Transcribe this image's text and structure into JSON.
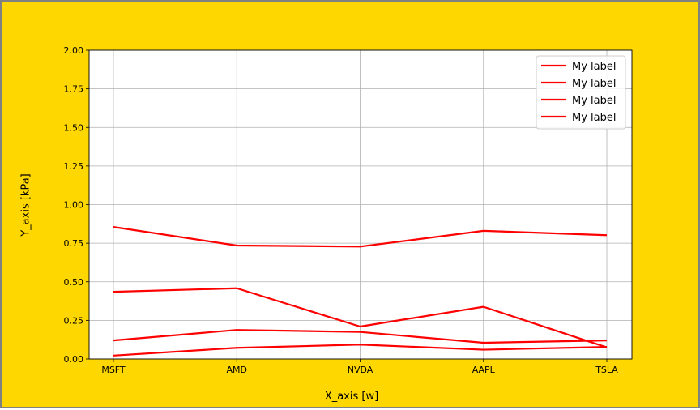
{
  "chart_data": {
    "type": "line",
    "categories": [
      "MSFT",
      "AMD",
      "NVDA",
      "AAPL",
      "TSLA"
    ],
    "series": [
      {
        "name": "My label",
        "values": [
          0.855,
          0.735,
          0.728,
          0.83,
          0.802
        ]
      },
      {
        "name": "My label",
        "values": [
          0.435,
          0.458,
          0.21,
          0.338,
          0.075
        ]
      },
      {
        "name": "My label",
        "values": [
          0.12,
          0.188,
          0.175,
          0.105,
          0.12
        ]
      },
      {
        "name": "My label",
        "values": [
          0.022,
          0.072,
          0.093,
          0.06,
          0.078
        ]
      }
    ],
    "xlabel": "X_axis [w]",
    "ylabel": "Y_axis [kPa]",
    "ylim": [
      0,
      2.0
    ],
    "yticks": [
      "0.00",
      "0.25",
      "0.50",
      "0.75",
      "1.00",
      "1.25",
      "1.50",
      "1.75",
      "2.00"
    ],
    "grid": true,
    "legend_position": "top-right",
    "line_color": "#FF0000",
    "background_color": "#FFD700",
    "plot_background": "#FFFFFF"
  }
}
